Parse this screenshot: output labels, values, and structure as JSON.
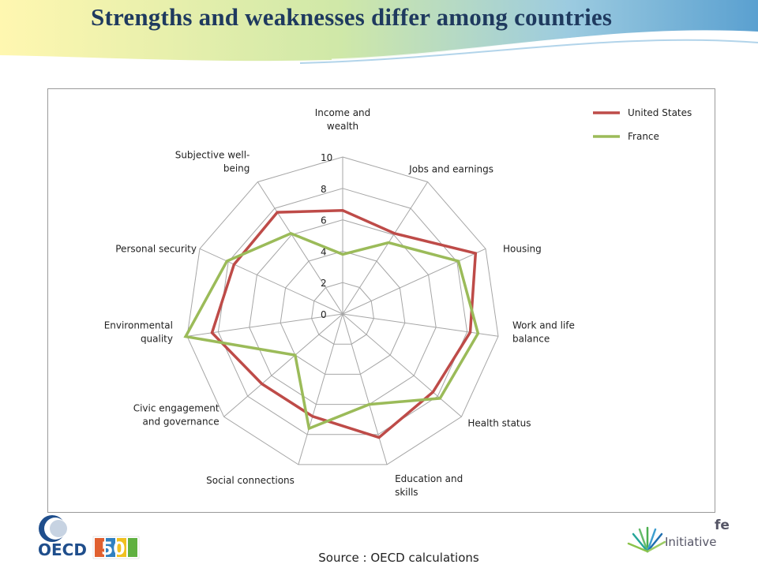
{
  "slide": {
    "title": "Strengths and weaknesses differ among countries",
    "source_note": "Source : OECD calculations",
    "initiative_label": "Initiative",
    "initiative_partial": "fe",
    "logo_oecd_text": "OECD",
    "logo_50_text": "50",
    "banner_colors": [
      "#fff7b0",
      "#cfe8a8",
      "#9ccbe0",
      "#5aa0d0"
    ]
  },
  "chart_data": {
    "type": "radar",
    "axes": [
      "Income and wealth",
      "Jobs and earnings",
      "Housing",
      "Work and life balance",
      "Health status",
      "Education and skills",
      "Social connections",
      "Civic engagement and governance",
      "Environmental quality",
      "Personal security",
      "Subjective well-being"
    ],
    "axis_label_lines": [
      [
        "Income and",
        "wealth"
      ],
      [
        "Jobs and earnings"
      ],
      [
        "Housing"
      ],
      [
        "Work and life",
        "balance"
      ],
      [
        "Health status"
      ],
      [
        "Education and",
        "skills"
      ],
      [
        "Social connections"
      ],
      [
        "Civic engagement",
        "and governance"
      ],
      [
        "Environmental",
        "quality"
      ],
      [
        "Personal security"
      ],
      [
        "Subjective well-",
        "being"
      ]
    ],
    "ticks": [
      0,
      2,
      4,
      6,
      8,
      10
    ],
    "rmax": 10,
    "series": [
      {
        "name": "United States",
        "color": "#be4b48",
        "values": [
          6.6,
          6.1,
          9.3,
          8.2,
          7.6,
          8.2,
          6.8,
          6.8,
          8.4,
          7.6,
          7.7
        ]
      },
      {
        "name": "France",
        "color": "#9bbb59",
        "values": [
          3.8,
          5.4,
          8.1,
          8.7,
          8.2,
          6.0,
          7.6,
          4.0,
          10.1,
          8.1,
          6.1
        ]
      }
    ],
    "legend_position": "top-right",
    "grid": true
  }
}
